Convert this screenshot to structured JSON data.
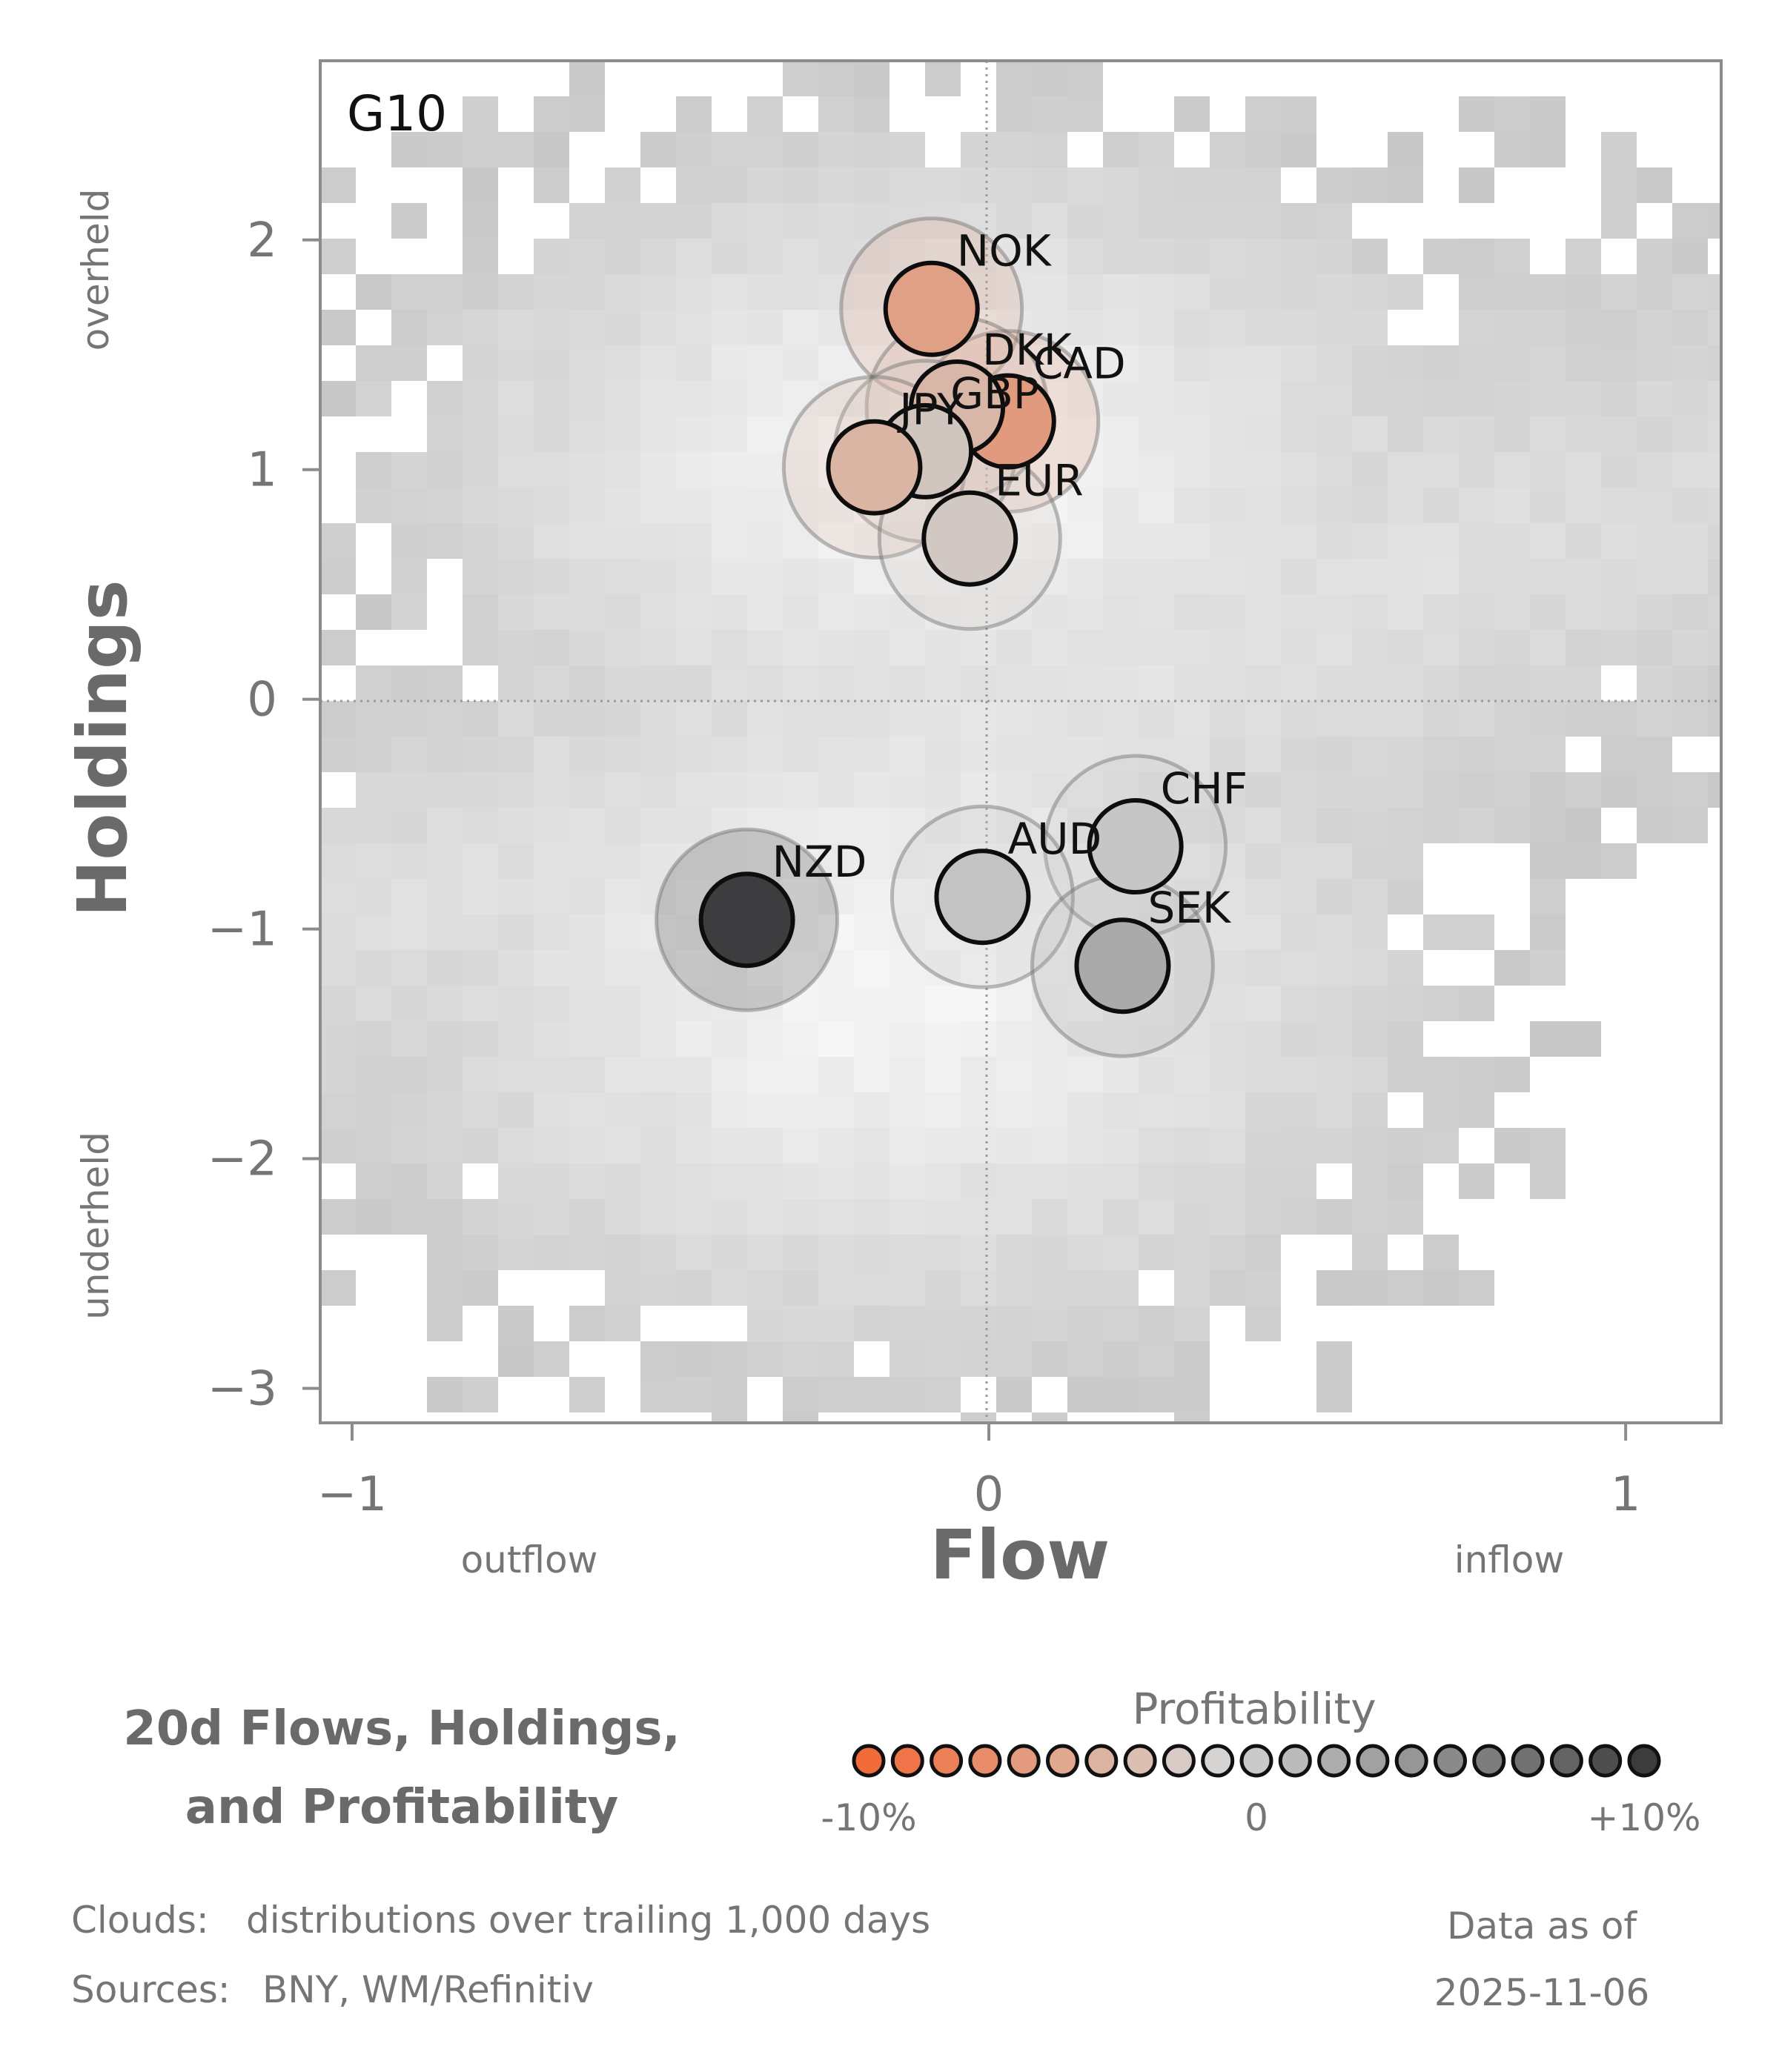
{
  "chart_data": {
    "type": "scatter",
    "panel_label": "G10",
    "xlabel": "Flow",
    "ylabel": "Holdings",
    "xlim": [
      -1.05,
      1.15
    ],
    "ylim": [
      -3.15,
      2.78
    ],
    "x_ticks": [
      {
        "value": -1,
        "label": "−1"
      },
      {
        "value": 0,
        "label": "0"
      },
      {
        "value": 1,
        "label": "1"
      }
    ],
    "y_ticks": [
      {
        "value": 2,
        "label": "2"
      },
      {
        "value": 1,
        "label": "1"
      },
      {
        "value": 0,
        "label": "0"
      },
      {
        "value": -1,
        "label": "−1"
      },
      {
        "value": -2,
        "label": "−2"
      },
      {
        "value": -3,
        "label": "−3"
      }
    ],
    "x_hints": {
      "low": "outflow",
      "high": "inflow"
    },
    "y_hints": {
      "high": "overheld",
      "low": "underheld"
    },
    "reference_lines": {
      "x": 0,
      "y": 0,
      "style": "dotted"
    },
    "points": [
      {
        "label": "NOK",
        "flow": -0.09,
        "holdings": 1.7,
        "profitability": -6,
        "color": "#e0a085"
      },
      {
        "label": "CAD",
        "flow": 0.03,
        "holdings": 1.21,
        "profitability": -7,
        "color": "#e29a7e"
      },
      {
        "label": "DKK",
        "flow": -0.05,
        "holdings": 1.27,
        "profitability": -3,
        "color": "#d8b7a9"
      },
      {
        "label": "GBP",
        "flow": -0.1,
        "holdings": 1.08,
        "profitability": -1,
        "color": "#d1c6bf"
      },
      {
        "label": "JPY",
        "flow": -0.18,
        "holdings": 1.01,
        "profitability": -4,
        "color": "#dbb5a4"
      },
      {
        "label": "EUR",
        "flow": -0.03,
        "holdings": 0.7,
        "profitability": -1,
        "color": "#d2c8c3"
      },
      {
        "label": "CHF",
        "flow": 0.23,
        "holdings": -0.64,
        "profitability": 1,
        "color": "#c6c6c6"
      },
      {
        "label": "AUD",
        "flow": -0.01,
        "holdings": -0.86,
        "profitability": 1,
        "color": "#c3c3c3"
      },
      {
        "label": "SEK",
        "flow": 0.21,
        "holdings": -1.16,
        "profitability": 3,
        "color": "#aaaaaa"
      },
      {
        "label": "NZD",
        "flow": -0.38,
        "holdings": -0.96,
        "profitability": 10,
        "color": "#3d3d3f"
      }
    ],
    "background": "trailing 1,000-day distribution cloud (grey density)",
    "legend": {
      "title": "Profitability",
      "tick_labels": [
        "-10%",
        "0",
        "+10%"
      ],
      "colors": [
        "#f26b3a",
        "#f0744a",
        "#ec8059",
        "#e98c69",
        "#e49a7e",
        "#dfa88f",
        "#dcb3a0",
        "#dabfb2",
        "#d8cbc5",
        "#d6d4d3",
        "#cacaca",
        "#bbbbbb",
        "#adadad",
        "#a1a1a1",
        "#969696",
        "#8a8a8a",
        "#7d7d7d",
        "#717171",
        "#636363",
        "#4e4e4e",
        "#3c3c3c"
      ]
    }
  },
  "caption": {
    "line1": "20d Flows, Holdings,",
    "line2": "and Profitability"
  },
  "footer": {
    "clouds_key": "Clouds:",
    "clouds_value": "distributions over trailing 1,000 days",
    "sources_key": "Sources:",
    "sources_value": "BNY, WM/Refinitiv",
    "asof_line1": "Data as of",
    "asof_line2": "2025-11-06"
  }
}
